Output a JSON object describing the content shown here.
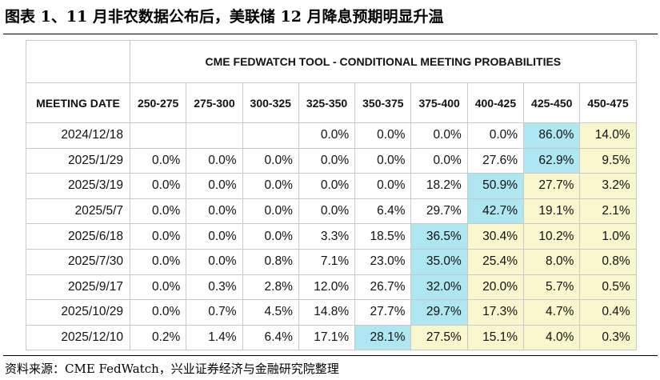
{
  "header": {
    "title": "图表 1、11 月非农数据公布后，美联储 12 月降息预期明显升温"
  },
  "table": {
    "caption": "CME FEDWATCH TOOL - CONDITIONAL MEETING PROBABILITIES",
    "columns": [
      "MEETING DATE",
      "250-275",
      "275-300",
      "300-325",
      "325-350",
      "350-375",
      "375-400",
      "400-425",
      "425-450",
      "450-475"
    ],
    "rows": [
      [
        "2024/12/18",
        null,
        null,
        null,
        "0.0%",
        "0.0%",
        "0.0%",
        "0.0%",
        "86.0%",
        "14.0%"
      ],
      [
        "2025/1/29",
        "0.0%",
        "0.0%",
        "0.0%",
        "0.0%",
        "0.0%",
        "0.0%",
        "27.6%",
        "62.9%",
        "9.5%"
      ],
      [
        "2025/3/19",
        "0.0%",
        "0.0%",
        "0.0%",
        "0.0%",
        "0.0%",
        "18.2%",
        "50.9%",
        "27.7%",
        "3.2%"
      ],
      [
        "2025/5/7",
        "0.0%",
        "0.0%",
        "0.0%",
        "0.0%",
        "6.4%",
        "29.7%",
        "42.7%",
        "19.1%",
        "2.1%"
      ],
      [
        "2025/6/18",
        "0.0%",
        "0.0%",
        "0.0%",
        "3.3%",
        "18.5%",
        "36.5%",
        "30.4%",
        "10.2%",
        "1.0%"
      ],
      [
        "2025/7/30",
        "0.0%",
        "0.0%",
        "0.8%",
        "7.1%",
        "23.0%",
        "35.0%",
        "25.4%",
        "8.0%",
        "0.8%"
      ],
      [
        "2025/9/17",
        "0.0%",
        "0.3%",
        "2.8%",
        "12.0%",
        "26.7%",
        "32.0%",
        "20.0%",
        "5.7%",
        "0.5%"
      ],
      [
        "2025/10/29",
        "0.0%",
        "0.7%",
        "4.5%",
        "14.8%",
        "27.7%",
        "29.7%",
        "17.3%",
        "4.7%",
        "0.4%"
      ],
      [
        "2025/12/10",
        "0.2%",
        "1.4%",
        "6.4%",
        "17.1%",
        "28.1%",
        "27.5%",
        "15.1%",
        "4.0%",
        "0.3%"
      ]
    ],
    "max_color": "#aee6f1",
    "after_max_color": "#f8f7cd"
  },
  "footer": {
    "source": "资料来源：CME FedWatch，兴业证券经济与金融研究院整理"
  }
}
